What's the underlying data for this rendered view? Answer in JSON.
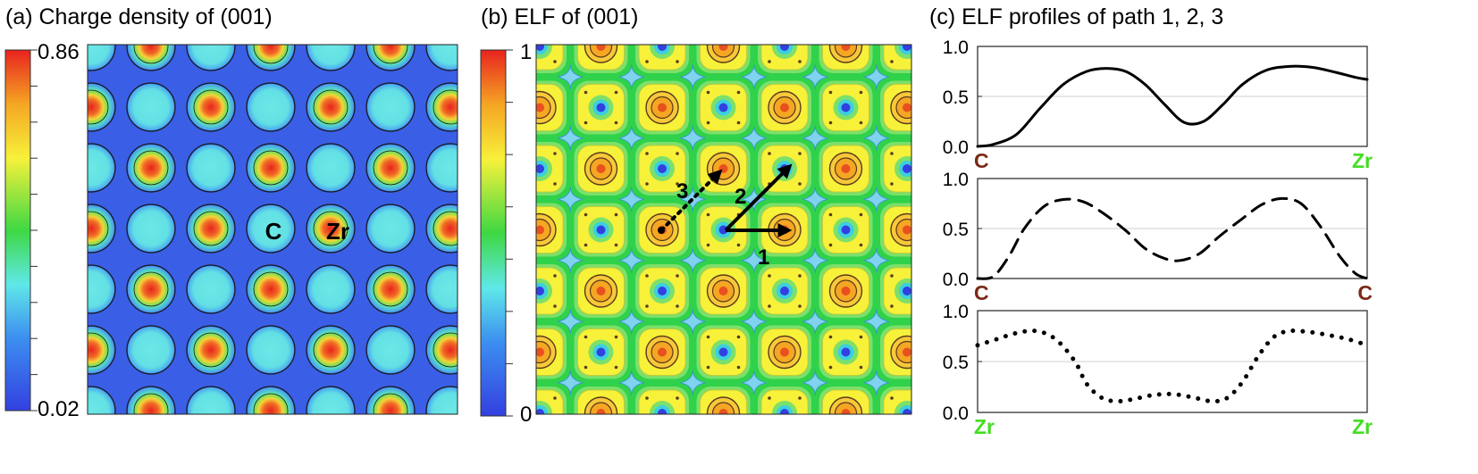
{
  "panels": {
    "a": {
      "title": "(a) Charge density of (001)",
      "colorbar_max": "0.86",
      "colorbar_min": "0.02",
      "atom_labels": [
        "C",
        "Zr"
      ]
    },
    "b": {
      "title": "(b) ELF of (001)",
      "colorbar_max": "1",
      "colorbar_min": "0",
      "path_labels": [
        "1",
        "2",
        "3"
      ]
    },
    "c": {
      "title": "(c) ELF profiles of path 1, 2, 3"
    }
  },
  "colors": {
    "map_low": "#3a5fe6",
    "map_mid": "#5fe0e0",
    "elf_green": "#3ed843",
    "elf_yellow": "#f7f13a",
    "zr_label": "#44dd22",
    "c_label": "#7a2a16"
  },
  "chart_data": [
    {
      "type": "line",
      "name": "path-1",
      "line_style": "solid",
      "xlim": [
        0,
        1
      ],
      "ylim": [
        0,
        1
      ],
      "yticks": [
        "0.0",
        "0.5",
        "1.0"
      ],
      "start_label": "C",
      "end_label": "Zr",
      "grid": true,
      "x": [
        0,
        0.04,
        0.1,
        0.16,
        0.22,
        0.28,
        0.33,
        0.38,
        0.43,
        0.48,
        0.53,
        0.58,
        0.63,
        0.68,
        0.74,
        0.8,
        0.86,
        0.92,
        0.97,
        1.0
      ],
      "y": [
        0.0,
        0.02,
        0.12,
        0.38,
        0.62,
        0.75,
        0.78,
        0.75,
        0.62,
        0.42,
        0.24,
        0.25,
        0.42,
        0.62,
        0.76,
        0.8,
        0.79,
        0.74,
        0.69,
        0.67
      ]
    },
    {
      "type": "line",
      "name": "path-2",
      "line_style": "dashed",
      "xlim": [
        0,
        1
      ],
      "ylim": [
        0,
        1
      ],
      "yticks": [
        "0.0",
        "0.5",
        "1.0"
      ],
      "start_label": "C",
      "end_label": "C",
      "grid": true,
      "x": [
        0,
        0.04,
        0.08,
        0.12,
        0.17,
        0.22,
        0.27,
        0.32,
        0.38,
        0.43,
        0.48,
        0.52,
        0.57,
        0.62,
        0.68,
        0.73,
        0.78,
        0.83,
        0.88,
        0.93,
        0.97,
        1.0
      ],
      "y": [
        0.0,
        0.02,
        0.22,
        0.5,
        0.72,
        0.79,
        0.77,
        0.66,
        0.48,
        0.3,
        0.2,
        0.18,
        0.25,
        0.42,
        0.6,
        0.74,
        0.8,
        0.75,
        0.52,
        0.22,
        0.05,
        0.0
      ]
    },
    {
      "type": "line",
      "name": "path-3",
      "line_style": "dotted",
      "xlim": [
        0,
        1
      ],
      "ylim": [
        0,
        1
      ],
      "yticks": [
        "0.0",
        "0.5",
        "1.0"
      ],
      "start_label": "Zr",
      "end_label": "Zr",
      "grid": true,
      "x": [
        0,
        0.05,
        0.1,
        0.15,
        0.2,
        0.25,
        0.28,
        0.32,
        0.36,
        0.4,
        0.45,
        0.5,
        0.55,
        0.6,
        0.64,
        0.68,
        0.72,
        0.76,
        0.8,
        0.85,
        0.9,
        0.95,
        1.0
      ],
      "y": [
        0.66,
        0.72,
        0.78,
        0.8,
        0.72,
        0.5,
        0.28,
        0.14,
        0.11,
        0.13,
        0.17,
        0.18,
        0.15,
        0.11,
        0.14,
        0.3,
        0.55,
        0.74,
        0.8,
        0.79,
        0.76,
        0.72,
        0.66
      ]
    }
  ]
}
